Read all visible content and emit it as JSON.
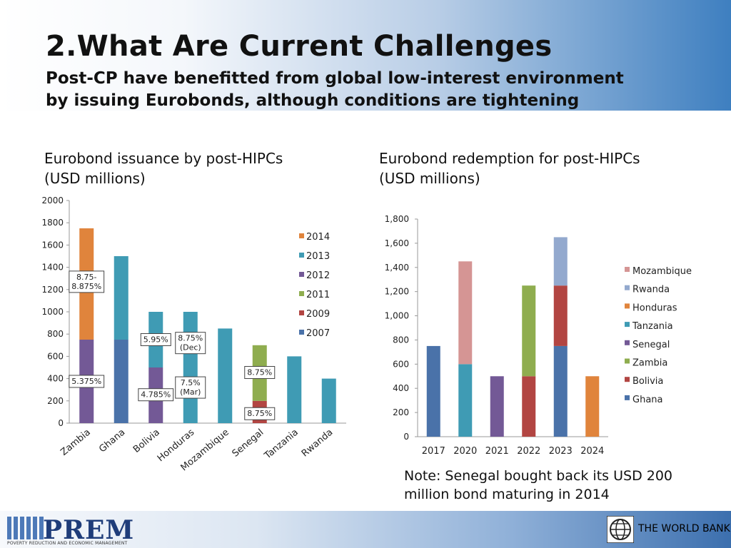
{
  "slide": {
    "title": "2.What Are Current Challenges",
    "subtitle_line1": "Post-CP have benefitted from global low-interest environment",
    "subtitle_line2": "by issuing Eurobonds, although conditions are tightening",
    "note_line1": "Note: Senegal bought back its USD 200",
    "note_line2": "million bond maturing in 2014"
  },
  "footer": {
    "prem_logo_text": "PREM",
    "prem_tagline": "POVERTY REDUCTION AND ECONOMIC MANAGEMENT",
    "worldbank_text": "THE WORLD BANK",
    "worldbank_icon": "globe-icon"
  },
  "chart_data": [
    {
      "type": "bar",
      "stacked": true,
      "title_line1": "Eurobond issuance by post-HIPCs",
      "title_line2": "(USD millions)",
      "categories": [
        "Zambia",
        "Ghana",
        "Bolivia",
        "Honduras",
        "Mozambique",
        "Senegal",
        "Tanzania",
        "Rwanda"
      ],
      "series": [
        {
          "name": "2007",
          "color": "#4a72a9",
          "values": [
            0,
            750,
            0,
            0,
            0,
            0,
            0,
            0
          ]
        },
        {
          "name": "2009",
          "color": "#b24542",
          "values": [
            0,
            0,
            0,
            0,
            0,
            200,
            0,
            0
          ]
        },
        {
          "name": "2011",
          "color": "#8fad4f",
          "values": [
            0,
            0,
            0,
            0,
            0,
            500,
            0,
            0
          ]
        },
        {
          "name": "2012",
          "color": "#735996",
          "values": [
            750,
            0,
            500,
            0,
            0,
            0,
            0,
            0
          ]
        },
        {
          "name": "2013",
          "color": "#3f9bb4",
          "values": [
            0,
            750,
            500,
            1000,
            850,
            0,
            600,
            400
          ]
        },
        {
          "name": "2014",
          "color": "#e0843c",
          "values": [
            1000,
            0,
            0,
            0,
            0,
            0,
            0,
            0
          ]
        }
      ],
      "ylim": [
        0,
        2000
      ],
      "yticks": [
        "0",
        "200",
        "400",
        "600",
        "800",
        "1000",
        "1200",
        "1400",
        "1600",
        "1800",
        "2000"
      ],
      "legend_position": "right",
      "annotations": [
        {
          "text": "8.75-8.875%",
          "category": "Zambia",
          "y": 1270
        },
        {
          "text": "5.375%",
          "category": "Zambia",
          "y": 375
        },
        {
          "text": "5.95%",
          "category": "Bolivia",
          "y": 750
        },
        {
          "text": "4.785%",
          "category": "Bolivia",
          "y": 255
        },
        {
          "text": "8.75% (Dec)",
          "category": "Honduras",
          "y": 720
        },
        {
          "text": "7.5% (Mar)",
          "category": "Honduras",
          "y": 320
        },
        {
          "text": "8.75%",
          "category": "Senegal",
          "y": 455
        },
        {
          "text": "8.75%",
          "category": "Senegal",
          "y": 85
        }
      ]
    },
    {
      "type": "bar",
      "stacked": true,
      "title_line1": "Eurobond redemption for post-HIPCs",
      "title_line2": "(USD millions)",
      "categories": [
        "2017",
        "2020",
        "2021",
        "2022",
        "2023",
        "2024"
      ],
      "series": [
        {
          "name": "Ghana",
          "color": "#4a72a9",
          "values": [
            750,
            0,
            0,
            0,
            750,
            0
          ]
        },
        {
          "name": "Bolivia",
          "color": "#b24542",
          "values": [
            0,
            0,
            0,
            500,
            500,
            0
          ]
        },
        {
          "name": "Zambia",
          "color": "#8fad4f",
          "values": [
            0,
            0,
            0,
            750,
            0,
            0
          ]
        },
        {
          "name": "Senegal",
          "color": "#735996",
          "values": [
            0,
            0,
            500,
            0,
            0,
            0
          ]
        },
        {
          "name": "Tanzania",
          "color": "#3f9bb4",
          "values": [
            0,
            600,
            0,
            0,
            0,
            0
          ]
        },
        {
          "name": "Honduras",
          "color": "#e0843c",
          "values": [
            0,
            0,
            0,
            0,
            0,
            500
          ]
        },
        {
          "name": "Rwanda",
          "color": "#93a9ce",
          "values": [
            0,
            0,
            0,
            0,
            400,
            0
          ]
        },
        {
          "name": "Mozambique",
          "color": "#d59594",
          "values": [
            0,
            850,
            0,
            0,
            0,
            0
          ]
        }
      ],
      "ylim": [
        0,
        1800
      ],
      "yticks": [
        "0",
        "200",
        "400",
        "600",
        "800",
        "1,000",
        "1,200",
        "1,400",
        "1,600",
        "1,800"
      ],
      "legend_position": "right"
    }
  ]
}
